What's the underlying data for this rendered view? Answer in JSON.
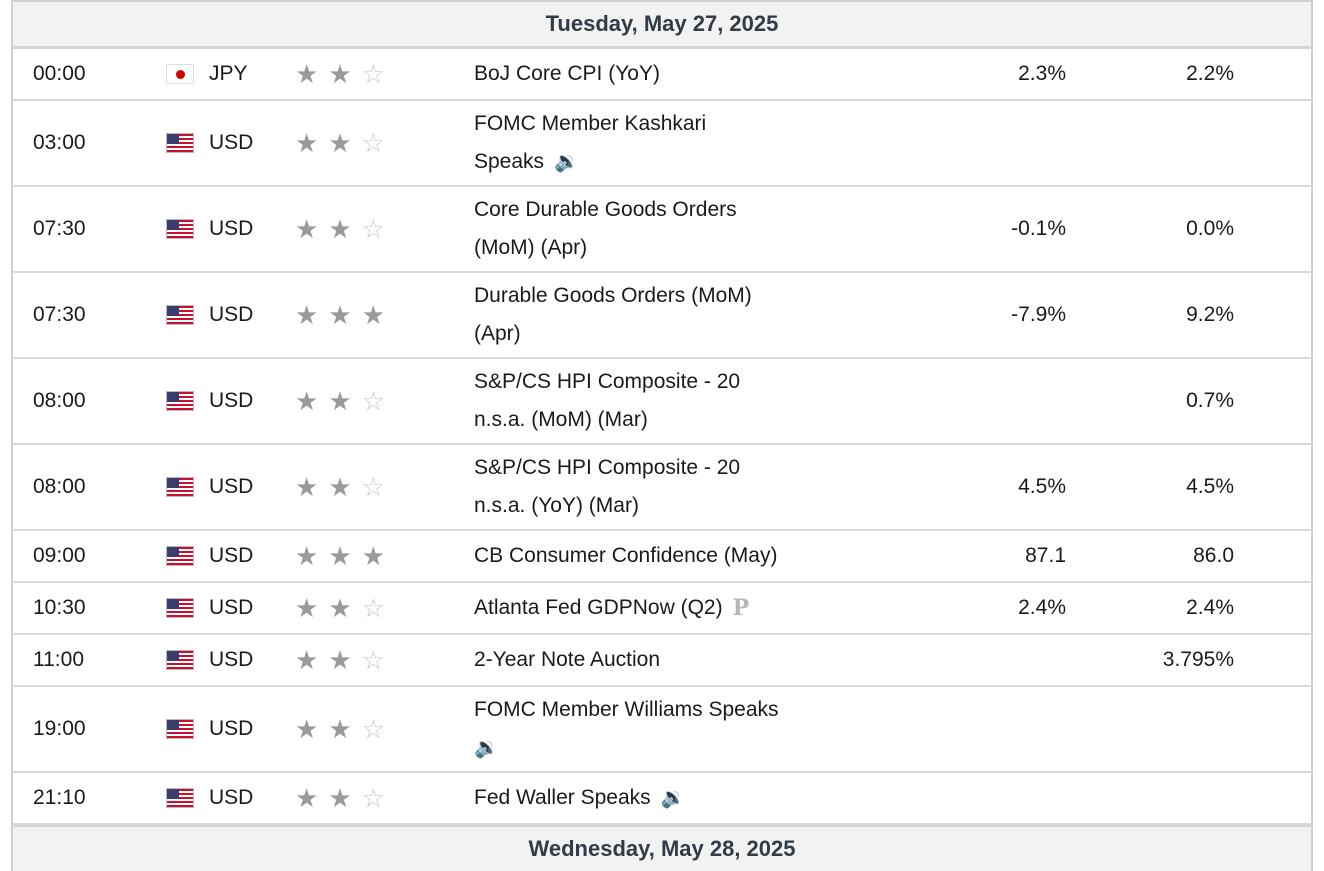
{
  "days": [
    {
      "label": "Tuesday, May 27, 2025"
    },
    {
      "label": "Wednesday, May 28, 2025"
    }
  ],
  "events": [
    {
      "time": "00:00",
      "flag": "jp",
      "currency": "JPY",
      "stars": 2,
      "lines": [
        "BoJ Core CPI (YoY)"
      ],
      "icon": "",
      "actual": "2.3%",
      "forecast": "2.2%"
    },
    {
      "time": "03:00",
      "flag": "us",
      "currency": "USD",
      "stars": 2,
      "lines": [
        "FOMC Member Kashkari",
        "Speaks"
      ],
      "icon": "speaker",
      "actual": "",
      "forecast": ""
    },
    {
      "time": "07:30",
      "flag": "us",
      "currency": "USD",
      "stars": 2,
      "lines": [
        "Core Durable Goods Orders",
        "(MoM) (Apr)"
      ],
      "icon": "",
      "actual": "-0.1%",
      "forecast": "0.0%"
    },
    {
      "time": "07:30",
      "flag": "us",
      "currency": "USD",
      "stars": 3,
      "lines": [
        "Durable Goods Orders (MoM)",
        "(Apr)"
      ],
      "icon": "",
      "actual": "-7.9%",
      "forecast": "9.2%"
    },
    {
      "time": "08:00",
      "flag": "us",
      "currency": "USD",
      "stars": 2,
      "lines": [
        "S&P/CS HPI Composite - 20",
        "n.s.a. (MoM) (Mar)"
      ],
      "icon": "",
      "actual": "",
      "forecast": "0.7%"
    },
    {
      "time": "08:00",
      "flag": "us",
      "currency": "USD",
      "stars": 2,
      "lines": [
        "S&P/CS HPI Composite - 20",
        "n.s.a. (YoY) (Mar)"
      ],
      "icon": "",
      "actual": "4.5%",
      "forecast": "4.5%"
    },
    {
      "time": "09:00",
      "flag": "us",
      "currency": "USD",
      "stars": 3,
      "lines": [
        "CB Consumer Confidence (May)"
      ],
      "icon": "",
      "actual": "87.1",
      "forecast": "86.0"
    },
    {
      "time": "10:30",
      "flag": "us",
      "currency": "USD",
      "stars": 2,
      "lines": [
        "Atlanta Fed GDPNow (Q2)"
      ],
      "icon": "preliminary",
      "actual": "2.4%",
      "forecast": "2.4%"
    },
    {
      "time": "11:00",
      "flag": "us",
      "currency": "USD",
      "stars": 2,
      "lines": [
        "2-Year Note Auction"
      ],
      "icon": "",
      "actual": "",
      "forecast": "3.795%"
    },
    {
      "time": "19:00",
      "flag": "us",
      "currency": "USD",
      "stars": 2,
      "lines": [
        "FOMC Member Williams Speaks",
        ""
      ],
      "icon": "speaker",
      "actual": "",
      "forecast": ""
    },
    {
      "time": "21:10",
      "flag": "us",
      "currency": "USD",
      "stars": 2,
      "lines": [
        "Fed Waller Speaks"
      ],
      "icon": "speaker",
      "actual": "",
      "forecast": ""
    }
  ],
  "icons": {
    "speaker": "speaker-icon",
    "preliminary": "preliminary-p-icon",
    "star_filled": "star-filled-icon",
    "star_empty": "star-empty-icon"
  },
  "colors": {
    "header_bg": "#f2f2f2",
    "header_text": "#333b46",
    "star_filled": "#9a9a9a",
    "star_empty": "#c8c8c8",
    "border": "#d8d8d8"
  }
}
